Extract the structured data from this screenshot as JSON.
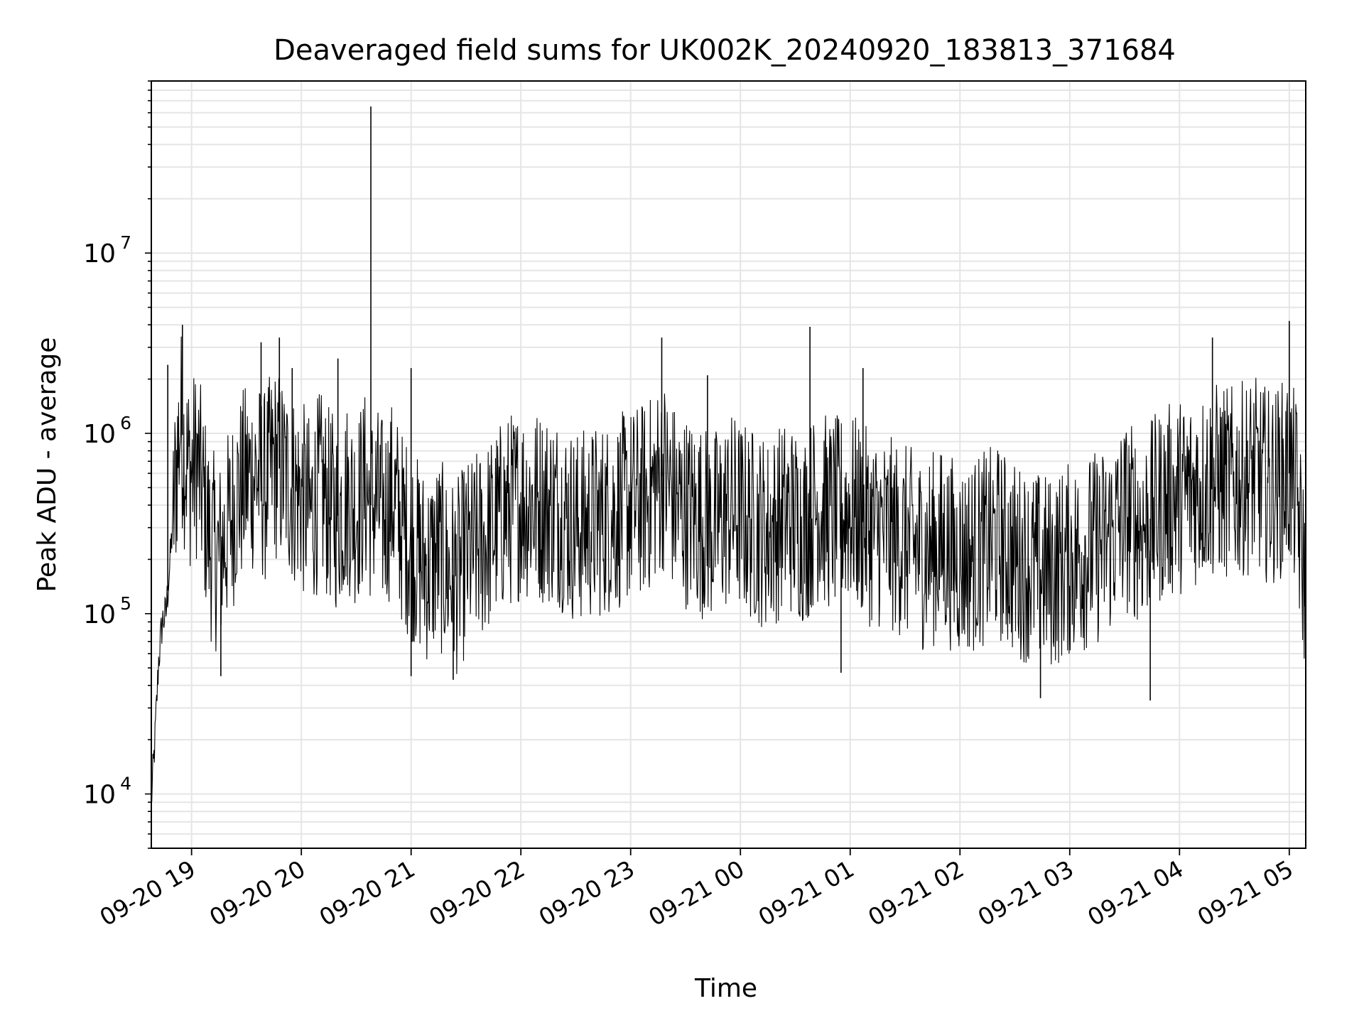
{
  "chart_data": {
    "type": "line",
    "title": "Deaveraged field sums for UK002K_20240920_183813_371684",
    "xlabel": "Time",
    "ylabel": "Peak ADU - average",
    "yscale": "log",
    "ylim": [
      5000,
      90000000
    ],
    "xlim": [
      "2024-09-20 18:38",
      "2024-09-21 05:09"
    ],
    "grid": true,
    "line_color": "#000000",
    "grid_color": "#e5e5e5",
    "x_ticks": [
      {
        "value": "2024-09-20 19:00",
        "label": "09-20 19"
      },
      {
        "value": "2024-09-20 20:00",
        "label": "09-20 20"
      },
      {
        "value": "2024-09-20 21:00",
        "label": "09-20 21"
      },
      {
        "value": "2024-09-20 22:00",
        "label": "09-20 22"
      },
      {
        "value": "2024-09-20 23:00",
        "label": "09-20 23"
      },
      {
        "value": "2024-09-21 00:00",
        "label": "09-21 00"
      },
      {
        "value": "2024-09-21 01:00",
        "label": "09-21 01"
      },
      {
        "value": "2024-09-21 02:00",
        "label": "09-21 02"
      },
      {
        "value": "2024-09-21 03:00",
        "label": "09-21 03"
      },
      {
        "value": "2024-09-21 04:00",
        "label": "09-21 04"
      },
      {
        "value": "2024-09-21 05:00",
        "label": "09-21 05"
      }
    ],
    "y_ticks": [
      {
        "value": 10000,
        "base": "10",
        "exp": "4"
      },
      {
        "value": 100000,
        "base": "10",
        "exp": "5"
      },
      {
        "value": 1000000,
        "base": "10",
        "exp": "6"
      },
      {
        "value": 10000000,
        "base": "10",
        "exp": "7"
      }
    ],
    "series": [
      {
        "x": [
          "2024-09-20 18:38",
          "2024-09-20 18:40",
          "2024-09-20 18:42",
          "2024-09-20 18:44",
          "2024-09-20 18:46",
          "2024-09-20 18:48",
          "2024-09-20 18:50",
          "2024-09-20 18:52",
          "2024-09-20 18:54",
          "2024-09-20 18:56",
          "2024-09-20 18:58",
          "2024-09-20 19:00",
          "2024-09-20 19:03",
          "2024-09-20 19:07",
          "2024-09-20 19:10",
          "2024-09-20 19:15",
          "2024-09-20 19:20",
          "2024-09-20 19:25",
          "2024-09-20 19:30",
          "2024-09-20 19:35",
          "2024-09-20 19:40",
          "2024-09-20 19:45",
          "2024-09-20 19:50",
          "2024-09-20 19:55",
          "2024-09-20 20:00",
          "2024-09-20 20:05",
          "2024-09-20 20:10",
          "2024-09-20 20:15",
          "2024-09-20 20:20",
          "2024-09-20 20:25",
          "2024-09-20 20:30",
          "2024-09-20 20:35",
          "2024-09-20 20:38",
          "2024-09-20 20:41",
          "2024-09-20 20:45",
          "2024-09-20 20:50",
          "2024-09-20 20:55",
          "2024-09-20 21:00",
          "2024-09-20 21:05",
          "2024-09-20 21:10",
          "2024-09-20 21:15",
          "2024-09-20 21:20",
          "2024-09-20 21:25",
          "2024-09-20 21:30",
          "2024-09-20 21:40",
          "2024-09-20 21:50",
          "2024-09-20 22:00",
          "2024-09-20 22:10",
          "2024-09-20 22:20",
          "2024-09-20 22:30",
          "2024-09-20 22:40",
          "2024-09-20 22:50",
          "2024-09-20 23:00",
          "2024-09-20 23:10",
          "2024-09-20 23:18",
          "2024-09-20 23:25",
          "2024-09-20 23:35",
          "2024-09-20 23:45",
          "2024-09-20 23:55",
          "2024-09-21 00:05",
          "2024-09-21 00:15",
          "2024-09-21 00:25",
          "2024-09-21 00:35",
          "2024-09-21 00:42",
          "2024-09-21 00:50",
          "2024-09-21 01:00",
          "2024-09-21 01:10",
          "2024-09-21 01:20",
          "2024-09-21 01:30",
          "2024-09-21 01:40",
          "2024-09-21 01:50",
          "2024-09-21 02:00",
          "2024-09-21 02:10",
          "2024-09-21 02:20",
          "2024-09-21 02:30",
          "2024-09-21 02:40",
          "2024-09-21 02:50",
          "2024-09-21 03:00",
          "2024-09-21 03:10",
          "2024-09-21 03:20",
          "2024-09-21 03:30",
          "2024-09-21 03:40",
          "2024-09-21 03:50",
          "2024-09-21 04:00",
          "2024-09-21 04:10",
          "2024-09-21 04:20",
          "2024-09-21 04:30",
          "2024-09-21 04:40",
          "2024-09-21 04:50",
          "2024-09-21 05:00",
          "2024-09-21 05:04",
          "2024-09-21 05:06",
          "2024-09-21 05:09"
        ],
        "y": [
          9000,
          20000,
          55000,
          90000,
          100000,
          180000,
          350000,
          700000,
          1200000,
          800000,
          650000,
          600000,
          700000,
          400000,
          250000,
          200000,
          300000,
          450000,
          550000,
          600000,
          500000,
          700000,
          600000,
          500000,
          450000,
          350000,
          500000,
          400000,
          350000,
          450000,
          380000,
          500000,
          400000,
          420000,
          350000,
          450000,
          300000,
          250000,
          200000,
          180000,
          220000,
          170000,
          160000,
          200000,
          250000,
          350000,
          420000,
          400000,
          380000,
          300000,
          320000,
          350000,
          400000,
          450000,
          600000,
          400000,
          350000,
          300000,
          380000,
          320000,
          280000,
          350000,
          300000,
          400000,
          350000,
          380000,
          300000,
          280000,
          250000,
          220000,
          240000,
          200000,
          220000,
          250000,
          200000,
          180000,
          170000,
          200000,
          220000,
          250000,
          350000,
          300000,
          400000,
          450000,
          500000,
          550000,
          520000,
          600000,
          500000,
          600000,
          450000,
          250000,
          150000
        ]
      }
    ],
    "spikes": [
      {
        "x": "2024-09-20 18:47",
        "y": 2400000
      },
      {
        "x": "2024-09-20 18:55",
        "y": 4000000
      },
      {
        "x": "2024-09-20 19:16",
        "y": 45000
      },
      {
        "x": "2024-09-20 19:38",
        "y": 3200000
      },
      {
        "x": "2024-09-20 19:48",
        "y": 3400000
      },
      {
        "x": "2024-09-20 19:55",
        "y": 2300000
      },
      {
        "x": "2024-09-20 20:20",
        "y": 2600000
      },
      {
        "x": "2024-09-20 20:38",
        "y": 65000000
      },
      {
        "x": "2024-09-20 21:00",
        "y": 2300000
      },
      {
        "x": "2024-09-20 21:00",
        "y": 45000
      },
      {
        "x": "2024-09-20 21:23",
        "y": 43000
      },
      {
        "x": "2024-09-20 23:17",
        "y": 3400000
      },
      {
        "x": "2024-09-20 23:42",
        "y": 2100000
      },
      {
        "x": "2024-09-21 00:38",
        "y": 3900000
      },
      {
        "x": "2024-09-21 00:55",
        "y": 47000
      },
      {
        "x": "2024-09-21 01:07",
        "y": 2300000
      },
      {
        "x": "2024-09-21 02:44",
        "y": 34000
      },
      {
        "x": "2024-09-21 03:44",
        "y": 33000
      },
      {
        "x": "2024-09-21 04:18",
        "y": 3400000
      },
      {
        "x": "2024-09-21 05:00",
        "y": 4200000
      },
      {
        "x": "2024-09-21 05:09",
        "y": 95000
      }
    ]
  }
}
